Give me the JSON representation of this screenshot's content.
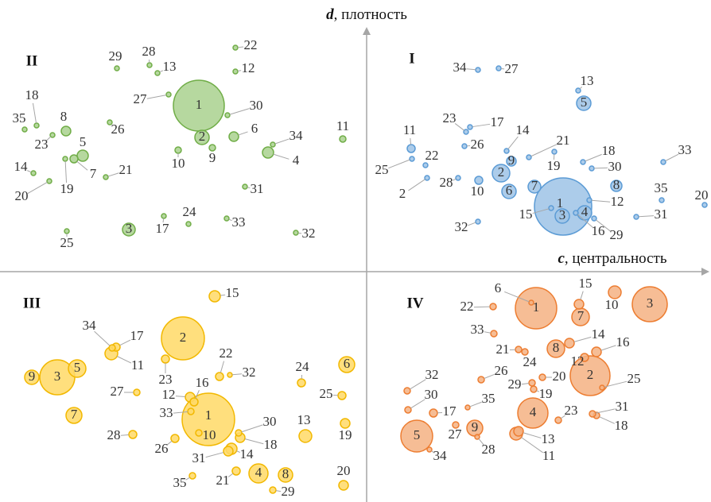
{
  "axes": {
    "y": {
      "var": "d",
      "name": ", плотность"
    },
    "x": {
      "var": "c",
      "name": ", центральность"
    }
  },
  "quadrants": [
    {
      "label": "II",
      "nodes": [
        "1",
        "2",
        "3",
        "4",
        "5",
        "6",
        "7",
        "8",
        "9",
        "10",
        "11",
        "12",
        "13",
        "14",
        "17",
        "18",
        "19",
        "20",
        "21",
        "22",
        "23",
        "24",
        "25",
        "26",
        "27",
        "28",
        "29",
        "30",
        "31",
        "32",
        "33",
        "34",
        "35"
      ]
    },
    {
      "label": "I",
      "nodes": [
        "1",
        "2",
        "3",
        "4",
        "5",
        "6",
        "7",
        "8",
        "9",
        "10",
        "11",
        "12",
        "13",
        "14",
        "15",
        "16",
        "17",
        "18",
        "19",
        "20",
        "21",
        "22",
        "23",
        "25",
        "26",
        "27",
        "28",
        "29",
        "30",
        "31",
        "32",
        "33",
        "34",
        "35",
        "2"
      ]
    },
    {
      "label": "III",
      "nodes": [
        "1",
        "2",
        "3",
        "4",
        "5",
        "6",
        "7",
        "8",
        "9",
        "10",
        "11",
        "12",
        "13",
        "14",
        "15",
        "16",
        "17",
        "18",
        "19",
        "20",
        "21",
        "22",
        "23",
        "24",
        "25",
        "26",
        "27",
        "28",
        "29",
        "30",
        "31",
        "32",
        "33",
        "34",
        "35"
      ]
    },
    {
      "label": "IV",
      "nodes": [
        "1",
        "2",
        "3",
        "4",
        "5",
        "6",
        "7",
        "8",
        "9",
        "10",
        "11",
        "12",
        "13",
        "14",
        "15",
        "16",
        "17",
        "18",
        "19",
        "20",
        "21",
        "22",
        "23",
        "24",
        "25",
        "26",
        "27",
        "28",
        "29",
        "30",
        "31",
        "32",
        "33",
        "34",
        "35"
      ]
    }
  ]
}
